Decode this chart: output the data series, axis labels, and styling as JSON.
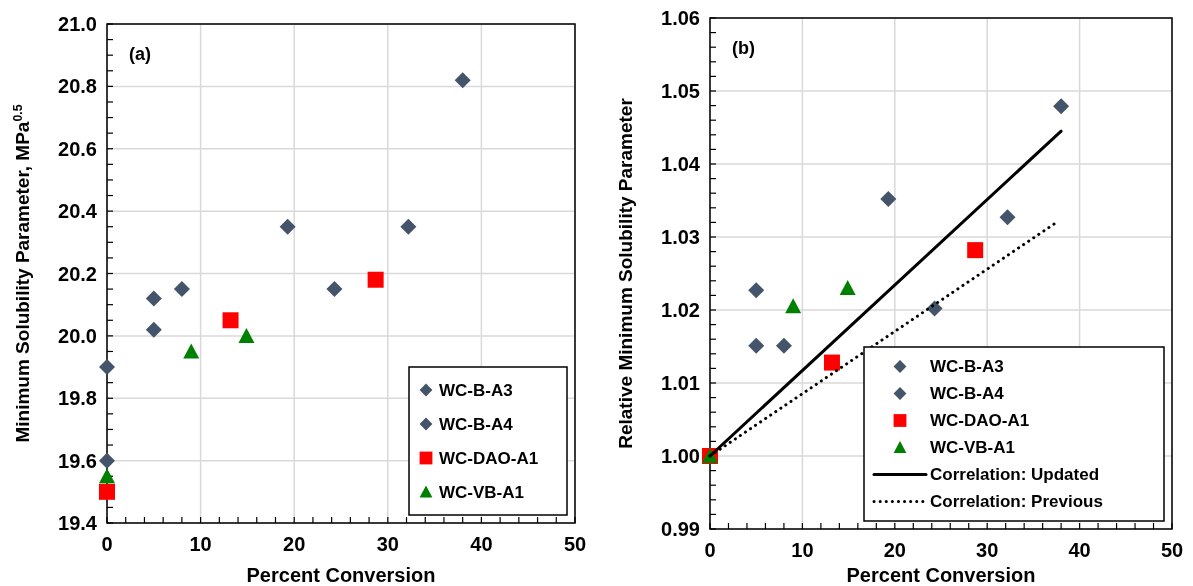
{
  "chart_data": [
    {
      "type": "scatter",
      "annotations": [
        "(a)"
      ],
      "xlabel": "Percent Conversion",
      "ylabel": "Minimum Solubility Parameter, MPa$^{0.5}$",
      "xlim": [
        0,
        50
      ],
      "ylim": [
        19.4,
        21.0
      ],
      "xticks": [
        0,
        {
          "value": 2,
          "label": null
        },
        {
          "value": 4,
          "label": null
        },
        {
          "value": 6,
          "label": null
        },
        {
          "value": 8,
          "label": null
        },
        10,
        {
          "value": 12,
          "label": null
        },
        {
          "value": 14,
          "label": null
        },
        {
          "value": 16,
          "label": null
        },
        {
          "value": 18,
          "label": null
        },
        20,
        {
          "value": 22,
          "label": null
        },
        {
          "value": 24,
          "label": null
        },
        {
          "value": 26,
          "label": null
        },
        {
          "value": 28,
          "label": null
        },
        30,
        {
          "value": 32,
          "label": null
        },
        {
          "value": 34,
          "label": null
        },
        {
          "value": 36,
          "label": null
        },
        {
          "value": 38,
          "label": null
        },
        40,
        {
          "value": 42,
          "label": null
        },
        {
          "value": 44,
          "label": null
        },
        {
          "value": 46,
          "label": null
        },
        {
          "value": 48,
          "label": null
        },
        50
      ],
      "yticks": [
        {
          "value": 19.4,
          "label": "19.4"
        },
        {
          "value": 19.45,
          "label": null
        },
        {
          "value": 19.5,
          "label": null
        },
        {
          "value": 19.55,
          "label": null
        },
        {
          "value": 19.6,
          "label": "19.6"
        },
        {
          "value": 19.65,
          "label": null
        },
        {
          "value": 19.7,
          "label": null
        },
        {
          "value": 19.75,
          "label": null
        },
        {
          "value": 19.8,
          "label": "19.8"
        },
        {
          "value": 19.85,
          "label": null
        },
        {
          "value": 19.9,
          "label": null
        },
        {
          "value": 19.95,
          "label": null
        },
        {
          "value": 20.0,
          "label": "20.0"
        },
        {
          "value": 20.05,
          "label": null
        },
        {
          "value": 20.1,
          "label": null
        },
        {
          "value": 20.15,
          "label": null
        },
        {
          "value": 20.2,
          "label": "20.2"
        },
        {
          "value": 20.25,
          "label": null
        },
        {
          "value": 20.3,
          "label": null
        },
        {
          "value": 20.35,
          "label": null
        },
        {
          "value": 20.4,
          "label": "20.4"
        },
        {
          "value": 20.45,
          "label": null
        },
        {
          "value": 20.5,
          "label": null
        },
        {
          "value": 20.55,
          "label": null
        },
        {
          "value": 20.6,
          "label": "20.6"
        },
        {
          "value": 20.65,
          "label": null
        },
        {
          "value": 20.7,
          "label": null
        },
        {
          "value": 20.75,
          "label": null
        },
        {
          "value": 20.8,
          "label": "20.8"
        },
        {
          "value": 20.85,
          "label": null
        },
        {
          "value": 20.9,
          "label": null
        },
        {
          "value": 20.95,
          "label": null
        },
        {
          "value": 21.0,
          "label": "21.0"
        }
      ],
      "grid": true,
      "legend": "bottom right",
      "series": [
        {
          "name": "WC-B-A3",
          "color": "#44546a",
          "marker": "diamond",
          "x": [
            0,
            5,
            5,
            8,
            19.3,
            38
          ],
          "values": [
            19.6,
            20.12,
            20.02,
            20.15,
            20.35,
            20.82
          ]
        },
        {
          "name": "WC-B-A4",
          "color": "#44546a",
          "marker": "diamond",
          "x": [
            0,
            24.3,
            32.2
          ],
          "values": [
            19.9,
            20.15,
            20.35
          ]
        },
        {
          "name": "WC-DAO-A1",
          "color": "#ff0000",
          "marker": "square",
          "x": [
            0,
            13.2,
            28.7
          ],
          "values": [
            19.5,
            20.05,
            20.18
          ]
        },
        {
          "name": "WC-VB-A1",
          "color": "#008000",
          "marker": "triangle",
          "x": [
            0,
            9,
            14.9
          ],
          "values": [
            19.55,
            19.95,
            20.0
          ]
        }
      ]
    },
    {
      "type": "scatter",
      "annotations": [
        "(b)"
      ],
      "xlabel": "Percent Conversion",
      "ylabel": "Relative Minimum Solubility Parameter",
      "xlim": [
        0,
        50
      ],
      "ylim": [
        0.99,
        1.06
      ],
      "xticks": [
        0,
        {
          "value": 2,
          "label": null
        },
        {
          "value": 4,
          "label": null
        },
        {
          "value": 6,
          "label": null
        },
        {
          "value": 8,
          "label": null
        },
        10,
        {
          "value": 12,
          "label": null
        },
        {
          "value": 14,
          "label": null
        },
        {
          "value": 16,
          "label": null
        },
        {
          "value": 18,
          "label": null
        },
        20,
        {
          "value": 22,
          "label": null
        },
        {
          "value": 24,
          "label": null
        },
        {
          "value": 26,
          "label": null
        },
        {
          "value": 28,
          "label": null
        },
        30,
        {
          "value": 32,
          "label": null
        },
        {
          "value": 34,
          "label": null
        },
        {
          "value": 36,
          "label": null
        },
        {
          "value": 38,
          "label": null
        },
        40,
        {
          "value": 42,
          "label": null
        },
        {
          "value": 44,
          "label": null
        },
        {
          "value": 46,
          "label": null
        },
        {
          "value": 48,
          "label": null
        },
        50
      ],
      "yticks": [
        {
          "value": 0.99,
          "label": "0.99"
        },
        {
          "value": 0.992,
          "label": null
        },
        {
          "value": 0.994,
          "label": null
        },
        {
          "value": 0.996,
          "label": null
        },
        {
          "value": 0.998,
          "label": null
        },
        {
          "value": 1.0,
          "label": "1.00"
        },
        {
          "value": 1.002,
          "label": null
        },
        {
          "value": 1.004,
          "label": null
        },
        {
          "value": 1.006,
          "label": null
        },
        {
          "value": 1.008,
          "label": null
        },
        {
          "value": 1.01,
          "label": "1.01"
        },
        {
          "value": 1.012,
          "label": null
        },
        {
          "value": 1.014,
          "label": null
        },
        {
          "value": 1.016,
          "label": null
        },
        {
          "value": 1.018,
          "label": null
        },
        {
          "value": 1.02,
          "label": "1.02"
        },
        {
          "value": 1.022,
          "label": null
        },
        {
          "value": 1.024,
          "label": null
        },
        {
          "value": 1.026,
          "label": null
        },
        {
          "value": 1.028,
          "label": null
        },
        {
          "value": 1.03,
          "label": "1.03"
        },
        {
          "value": 1.032,
          "label": null
        },
        {
          "value": 1.034,
          "label": null
        },
        {
          "value": 1.036,
          "label": null
        },
        {
          "value": 1.038,
          "label": null
        },
        {
          "value": 1.04,
          "label": "1.04"
        },
        {
          "value": 1.042,
          "label": null
        },
        {
          "value": 1.044,
          "label": null
        },
        {
          "value": 1.046,
          "label": null
        },
        {
          "value": 1.048,
          "label": null
        },
        {
          "value": 1.05,
          "label": "1.05"
        },
        {
          "value": 1.052,
          "label": null
        },
        {
          "value": 1.054,
          "label": null
        },
        {
          "value": 1.056,
          "label": null
        },
        {
          "value": 1.058,
          "label": null
        },
        {
          "value": 1.06,
          "label": "1.06"
        }
      ],
      "grid": true,
      "legend": "bottom right",
      "series": [
        {
          "name": "WC-B-A3",
          "color": "#44546a",
          "marker": "diamond",
          "x": [
            5,
            5,
            8,
            19.3,
            38
          ],
          "values": [
            1.0227,
            1.0151,
            1.0151,
            1.0352,
            1.0479
          ]
        },
        {
          "name": "WC-B-A4",
          "color": "#44546a",
          "marker": "diamond",
          "x": [
            24.3,
            32.2
          ],
          "values": [
            1.0202,
            1.0327
          ]
        },
        {
          "name": "WC-DAO-A1",
          "color": "#ff0000",
          "marker": "square",
          "x": [
            0,
            13.2,
            28.7
          ],
          "values": [
            1.0,
            1.0128,
            1.0282
          ]
        },
        {
          "name": "WC-VB-A1",
          "color": "#008000",
          "marker": "triangle",
          "x": [
            0,
            9,
            14.9
          ],
          "values": [
            1.0,
            1.0205,
            1.023
          ]
        },
        {
          "name": "Correlation: Updated",
          "type": "line",
          "color": "#000000",
          "line_style": "solid",
          "marker": "none",
          "x": [
            0,
            38
          ],
          "values": [
            1.0,
            1.0445
          ]
        },
        {
          "name": "Correlation: Previous",
          "type": "line",
          "color": "#000000",
          "line_style": "dotted",
          "marker": "none",
          "x": [
            0,
            37.5
          ],
          "values": [
            1.0,
            1.032
          ]
        }
      ]
    }
  ]
}
